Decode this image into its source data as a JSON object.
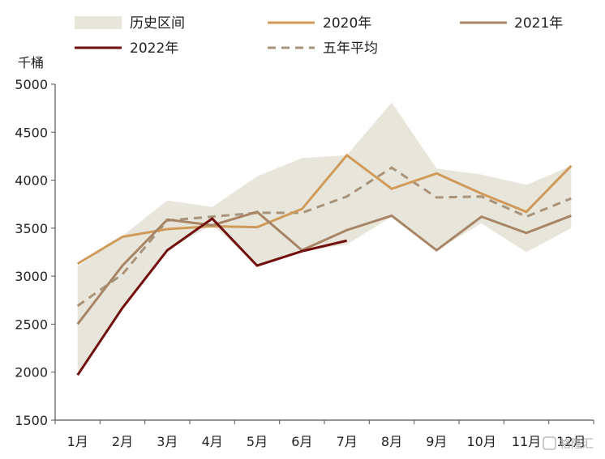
{
  "chart_data": {
    "type": "line",
    "ylabel": "千桶",
    "ylim": [
      1500,
      5000
    ],
    "yticks": [
      1500,
      2000,
      2500,
      3000,
      3500,
      4000,
      4500,
      5000
    ],
    "categories": [
      "1月",
      "2月",
      "3月",
      "4月",
      "5月",
      "6月",
      "7月",
      "8月",
      "9月",
      "10月",
      "11月",
      "12月"
    ],
    "band": {
      "name": "历史区间",
      "color": "#e8e6da",
      "upper": [
        3100,
        3420,
        3790,
        3720,
        4040,
        4230,
        4260,
        4810,
        4120,
        4060,
        3950,
        4150
      ],
      "lower": [
        2000,
        2650,
        3270,
        3540,
        3110,
        3260,
        3330,
        3620,
        3270,
        3550,
        3250,
        3500
      ]
    },
    "series": [
      {
        "name": "2020年",
        "color": "#d09a5a",
        "dash": "solid",
        "values": [
          3130,
          3410,
          3490,
          3520,
          3510,
          3700,
          4260,
          3910,
          4070,
          3860,
          3670,
          4150
        ]
      },
      {
        "name": "2021年",
        "color": "#a88567",
        "dash": "solid",
        "values": [
          2500,
          3110,
          3590,
          3530,
          3670,
          3270,
          3480,
          3630,
          3270,
          3620,
          3450,
          3630
        ]
      },
      {
        "name": "2022年",
        "color": "#720e0e",
        "dash": "solid",
        "values": [
          1970,
          2670,
          3270,
          3600,
          3110,
          3260,
          3370,
          null,
          null,
          null,
          null,
          null
        ]
      },
      {
        "name": "五年平均",
        "color": "#a8937b",
        "dash": "dashed",
        "values": [
          2690,
          3020,
          3580,
          3620,
          3660,
          3660,
          3830,
          4130,
          3820,
          3830,
          3620,
          3810
        ]
      }
    ],
    "legend_position": "top",
    "grid": false
  },
  "watermark": "格隆汇"
}
